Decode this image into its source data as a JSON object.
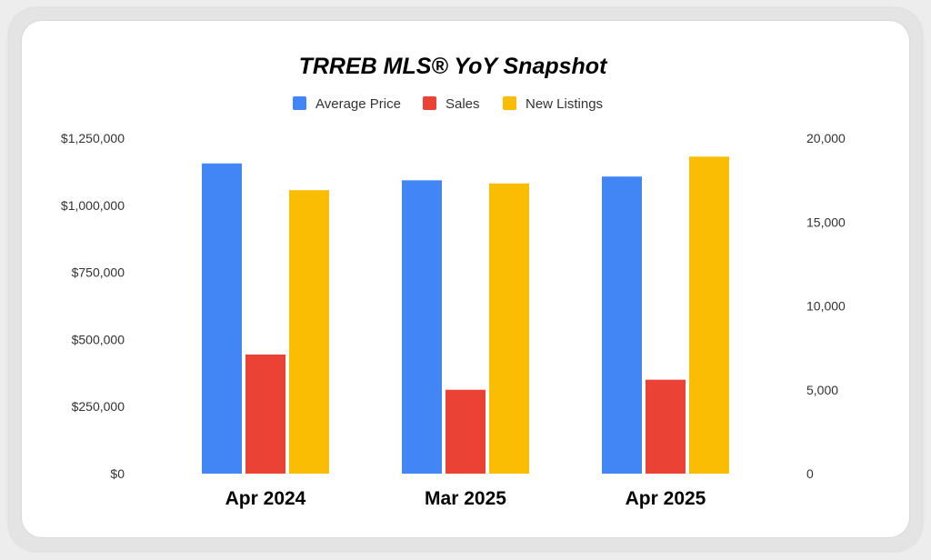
{
  "chart_data": {
    "type": "bar",
    "title": "TRREB MLS® YoY Snapshot",
    "categories": [
      "Apr 2024",
      "Mar 2025",
      "Apr 2025"
    ],
    "series": [
      {
        "name": "Average Price",
        "axis": "left",
        "color": "#4285F4",
        "values": [
          1156000,
          1093000,
          1107000
        ]
      },
      {
        "name": "Sales",
        "axis": "right",
        "color": "#EA4335",
        "values": [
          7100,
          5000,
          5600
        ]
      },
      {
        "name": "New Listings",
        "axis": "right",
        "color": "#FBBC04",
        "values": [
          16900,
          17300,
          18900
        ]
      }
    ],
    "y_left": {
      "range": [
        0,
        1250000
      ],
      "ticks": [
        "$0",
        "$250,000",
        "$500,000",
        "$750,000",
        "$1,000,000",
        "$1,250,000"
      ]
    },
    "y_right": {
      "range": [
        0,
        20000
      ],
      "ticks": [
        "0",
        "5,000",
        "10,000",
        "15,000",
        "20,000"
      ]
    },
    "legend_position": "top",
    "grid": false
  }
}
